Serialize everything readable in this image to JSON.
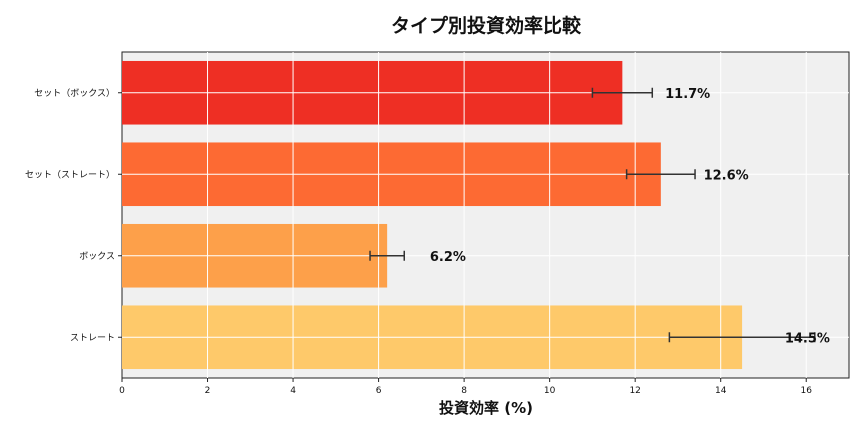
{
  "chart_data": {
    "type": "bar",
    "orientation": "horizontal",
    "title": "タイプ別投資効率比較",
    "xlabel": "投資効率 (%)",
    "ylabel": "",
    "xlim": [
      0,
      17
    ],
    "xticks": [
      0,
      2,
      4,
      6,
      8,
      10,
      12,
      14,
      16
    ],
    "grid": true,
    "categories": [
      "セット（ボックス）",
      "セット（ストレート）",
      "ボックス",
      "ストレート"
    ],
    "values": [
      11.7,
      12.6,
      6.2,
      14.5
    ],
    "errors": [
      0.7,
      0.8,
      0.4,
      1.7
    ],
    "data_labels": [
      "11.7%",
      "12.6%",
      "6.2%",
      "14.5%"
    ],
    "colors": [
      "#ee2f24",
      "#fd6a33",
      "#fda04a",
      "#fec96a"
    ],
    "background": "#f0f0f0"
  }
}
